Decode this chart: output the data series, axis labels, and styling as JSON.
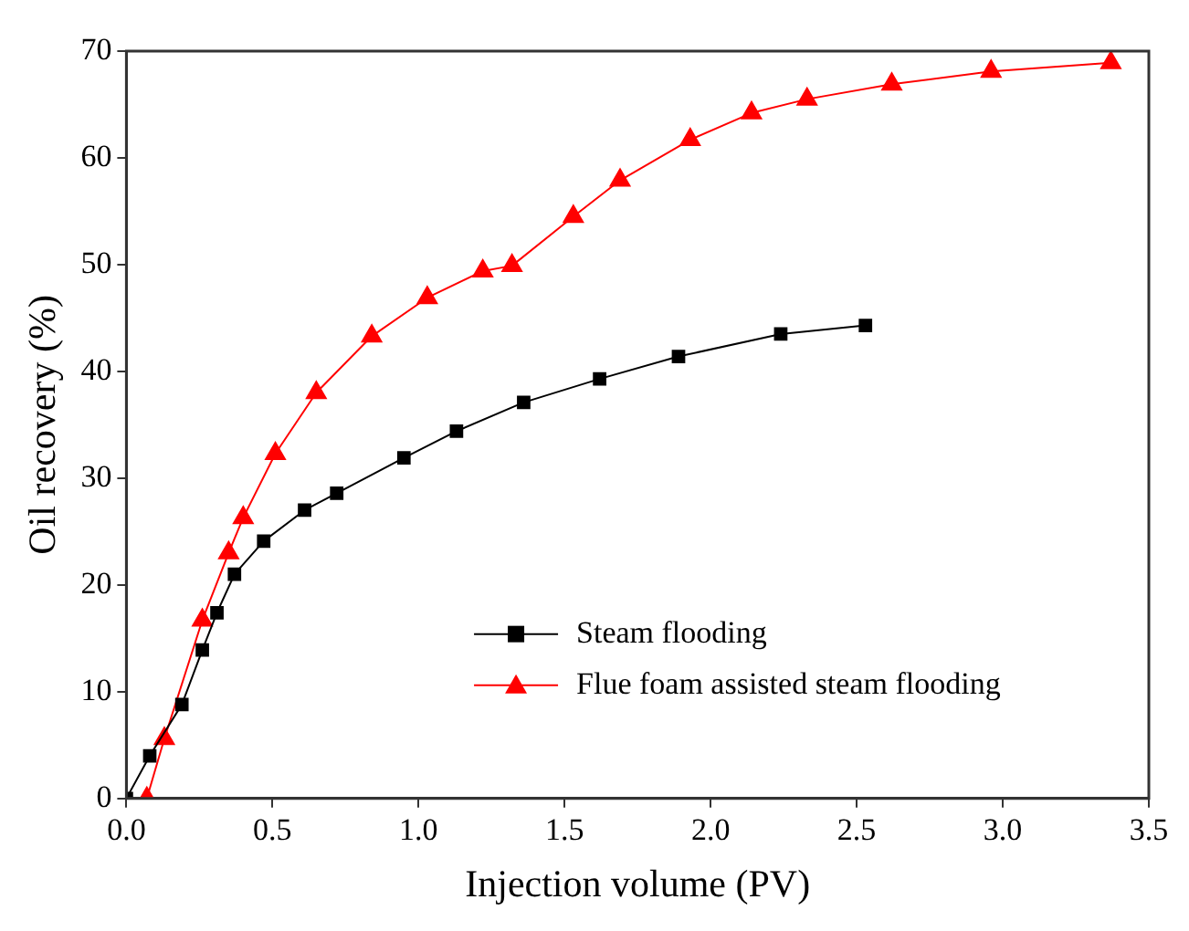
{
  "chart_data": {
    "type": "line",
    "xlabel": "Injection volume (PV)",
    "ylabel": "Oil recovery (%)",
    "xlim": [
      0,
      3.5
    ],
    "xticks": [
      {
        "value": 0,
        "label": "0.0"
      },
      {
        "value": 0.5,
        "label": "0.5"
      },
      {
        "value": 1,
        "label": "1.0"
      },
      {
        "value": 1.5,
        "label": "1.5"
      },
      {
        "value": 2,
        "label": "2.0"
      },
      {
        "value": 2.5,
        "label": "2.5"
      },
      {
        "value": 3,
        "label": "3.0"
      },
      {
        "value": 3.5,
        "label": "3.5"
      }
    ],
    "ylim": [
      0,
      70
    ],
    "yticks": [
      0,
      10,
      20,
      30,
      40,
      50,
      60,
      70
    ],
    "grid": false,
    "legend": "right",
    "series": [
      {
        "name": "Steam flooding",
        "color": "#000000",
        "marker": "square",
        "x": [
          0,
          0.08,
          0.19,
          0.26,
          0.31,
          0.37,
          0.47,
          0.61,
          0.72,
          0.95,
          1.13,
          1.36,
          1.62,
          1.89,
          2.24,
          2.53
        ],
        "values": [
          0,
          4,
          8.8,
          13.9,
          17.4,
          21,
          24.1,
          27,
          28.6,
          31.9,
          34.4,
          37.1,
          39.3,
          41.4,
          43.5,
          44.3
        ]
      },
      {
        "name": "Flue foam assisted steam flooding",
        "color": "#ff0000",
        "marker": "triangle",
        "x": [
          0.07,
          0.13,
          0.26,
          0.35,
          0.4,
          0.51,
          0.65,
          0.84,
          1.03,
          1.22,
          1.32,
          1.53,
          1.69,
          1.93,
          2.14,
          2.33,
          2.62,
          2.96,
          3.37
        ],
        "values": [
          0,
          5.6,
          16.7,
          23,
          26.3,
          32.3,
          38,
          43.3,
          46.9,
          49.4,
          49.9,
          54.5,
          57.9,
          61.7,
          64.2,
          65.5,
          66.9,
          68.1,
          68.9
        ]
      }
    ]
  }
}
